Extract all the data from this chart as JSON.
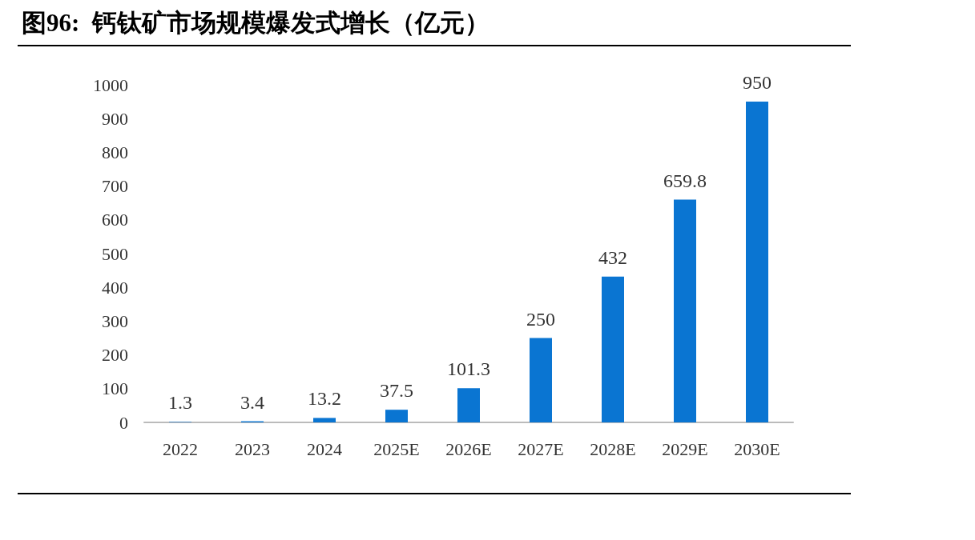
{
  "chart_data": {
    "type": "bar",
    "title": "图96:  钙钛矿市场规模爆发式增长（亿元）",
    "categories": [
      "2022",
      "2023",
      "2024",
      "2025E",
      "2026E",
      "2027E",
      "2028E",
      "2029E",
      "2030E"
    ],
    "values": [
      1.3,
      3.4,
      13.2,
      37.5,
      101.3,
      250,
      432,
      659.8,
      950
    ],
    "color": "#0a75d2",
    "ylim": [
      0,
      1000
    ],
    "yticks": [
      0,
      100,
      200,
      300,
      400,
      500,
      600,
      700,
      800,
      900,
      1000
    ],
    "grid": false,
    "data_labels": true
  }
}
